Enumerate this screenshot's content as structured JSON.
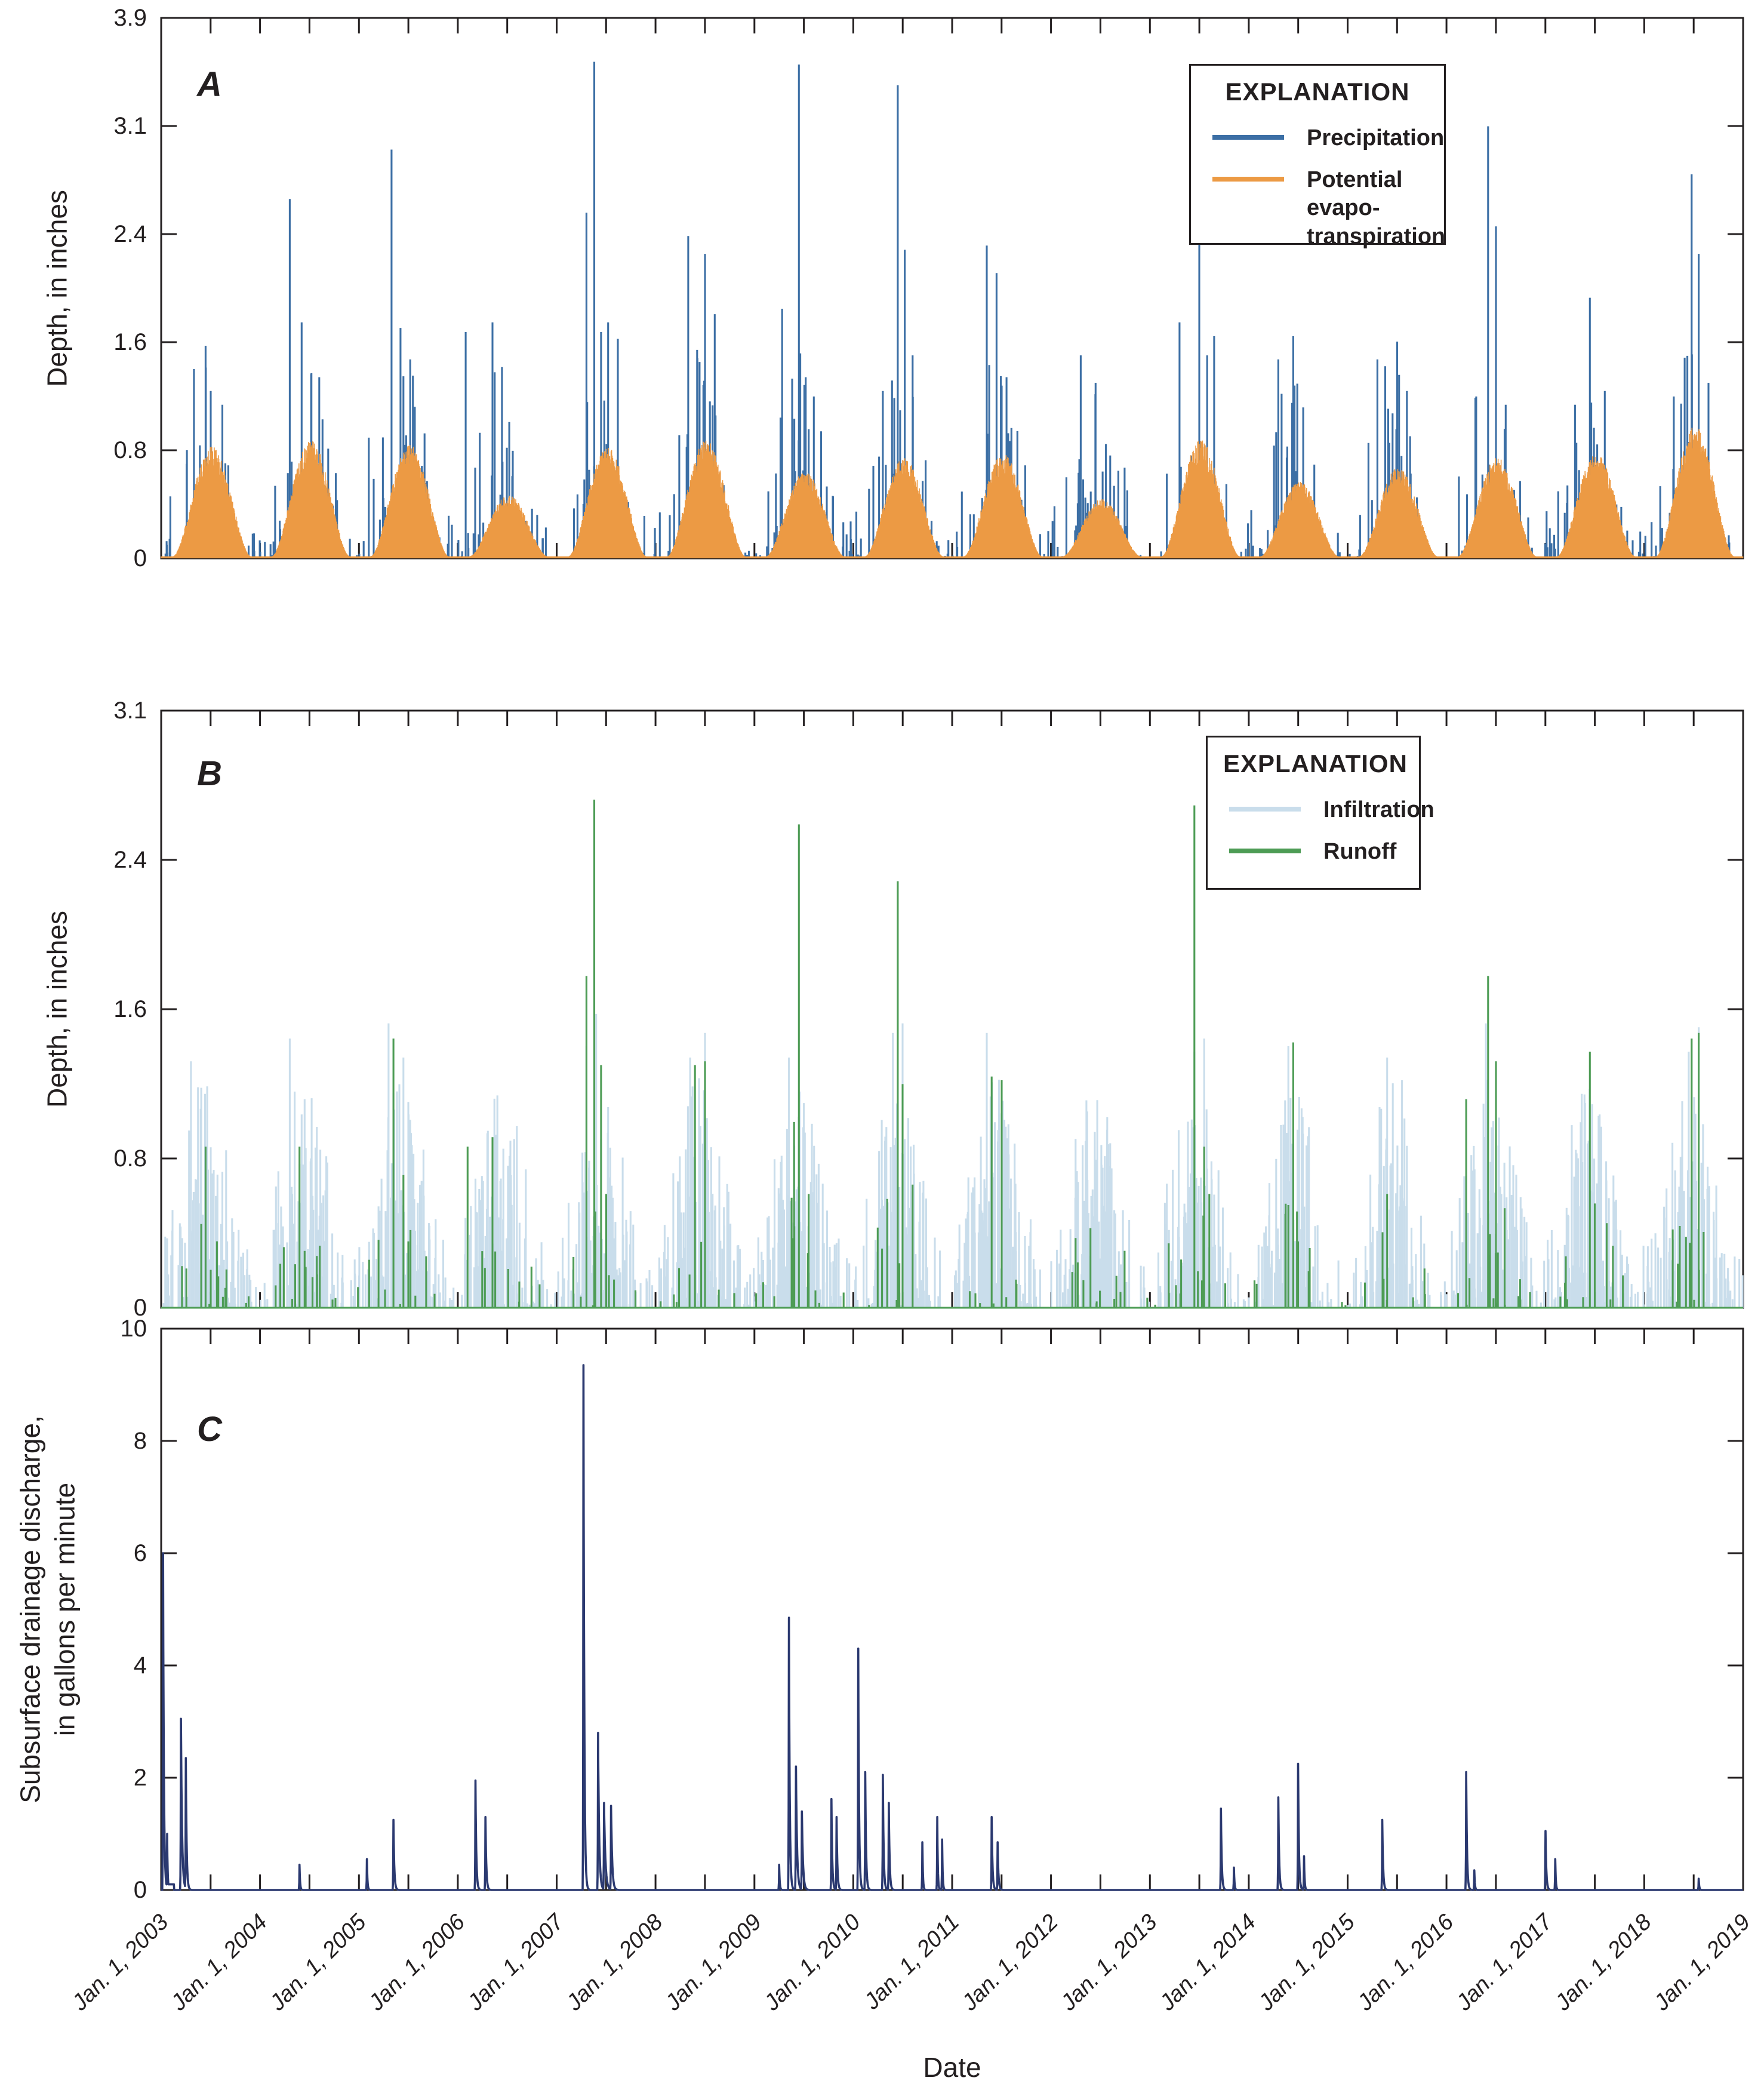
{
  "figure": {
    "panels": [
      {
        "letter": "A",
        "y_axis_title": "Depth, in inches",
        "y_tick_labels": [
          "0",
          "0.8",
          "1.6",
          "2.4",
          "3.1",
          "3.9"
        ]
      },
      {
        "letter": "B",
        "y_axis_title": "Depth, in inches",
        "y_tick_labels": [
          "0",
          "0.8",
          "1.6",
          "2.4",
          "3.1"
        ]
      },
      {
        "letter": "C",
        "y_axis_title_lines": [
          "Subsurface drainage discharge,",
          "in gallons per minute"
        ],
        "y_tick_labels": [
          "0",
          "2",
          "4",
          "6",
          "8",
          "10"
        ]
      }
    ],
    "x_axis": {
      "title": "Date",
      "year_labels": [
        "Jan. 1, 2003",
        "Jan. 1, 2004",
        "Jan. 1, 2005",
        "Jan. 1, 2006",
        "Jan. 1, 2007",
        "Jan. 1, 2008",
        "Jan. 1, 2009",
        "Jan. 1, 2010",
        "Jan. 1, 2011",
        "Jan. 1, 2012",
        "Jan. 1, 2013",
        "Jan. 1, 2014",
        "Jan. 1, 2015",
        "Jan. 1, 2016",
        "Jan. 1, 2017",
        "Jan. 1, 2018",
        "Jan. 1, 2019"
      ],
      "minor_ticks_per_year": 2
    },
    "axis_color": "#231f20",
    "background": "#ffffff"
  },
  "legends": {
    "a": {
      "title": "EXPLANATION",
      "items": [
        {
          "label": "Precipitation",
          "color": "#3C6FA5"
        },
        {
          "lines": [
            "Potential evapo-",
            "transpiration"
          ],
          "color": "#EC9A44"
        }
      ]
    },
    "b": {
      "title": "EXPLANATION",
      "items": [
        {
          "label": "Infiltration",
          "color": "#C9DDEB"
        },
        {
          "label": "Runoff",
          "color": "#4D9C55"
        }
      ]
    }
  },
  "chart_data": [
    {
      "panel": "A",
      "type": "bar",
      "ylabel": "Depth, in inches",
      "ylim": [
        0,
        3.94
      ],
      "y_tick_values": [
        0,
        0.79,
        1.57,
        2.36,
        3.15,
        3.94
      ],
      "x_range_years": [
        2003,
        2019
      ],
      "grid": false,
      "legend_position": "upper right",
      "series": [
        {
          "name": "Precipitation",
          "color": "#3C6FA5",
          "kind": "daily-events",
          "seed": 101,
          "event_prob_base": 0.048,
          "event_prob_seasonal": 0.17,
          "season_peak_doy": 165,
          "season_sigma_days": 78,
          "value_scale": 1.05,
          "value_power": 2.8,
          "value_seasonal_boost": 1.25,
          "major_peaks": [
            [
              2003.33,
              1.38
            ],
            [
              2003.45,
              1.55
            ],
            [
              2003.5,
              1.22
            ],
            [
              2003.62,
              1.12
            ],
            [
              2004.3,
              2.62
            ],
            [
              2004.42,
              1.72
            ],
            [
              2004.52,
              1.35
            ],
            [
              2004.6,
              1.32
            ],
            [
              2005.1,
              0.88
            ],
            [
              2005.33,
              2.98
            ],
            [
              2005.42,
              1.68
            ],
            [
              2005.52,
              1.45
            ],
            [
              2006.08,
              1.65
            ],
            [
              2006.35,
              1.72
            ],
            [
              2006.45,
              0.65
            ],
            [
              2006.55,
              0.6
            ],
            [
              2007.3,
              2.52
            ],
            [
              2007.38,
              3.62
            ],
            [
              2007.45,
              1.65
            ],
            [
              2007.52,
              1.72
            ],
            [
              2007.62,
              1.6
            ],
            [
              2008.33,
              2.35
            ],
            [
              2008.42,
              1.52
            ],
            [
              2008.5,
              2.22
            ],
            [
              2008.6,
              1.78
            ],
            [
              2009.28,
              1.82
            ],
            [
              2009.45,
              3.6
            ],
            [
              2009.52,
              1.32
            ],
            [
              2009.6,
              1.18
            ],
            [
              2010.3,
              1.22
            ],
            [
              2010.45,
              3.45
            ],
            [
              2010.52,
              2.25
            ],
            [
              2010.6,
              1.48
            ],
            [
              2011.35,
              2.28
            ],
            [
              2011.45,
              2.08
            ],
            [
              2011.55,
              1.32
            ],
            [
              2011.6,
              0.95
            ],
            [
              2012.3,
              1.48
            ],
            [
              2012.45,
              1.28
            ],
            [
              2012.6,
              0.75
            ],
            [
              2013.3,
              1.72
            ],
            [
              2013.5,
              3.35
            ],
            [
              2013.58,
              1.48
            ],
            [
              2013.65,
              1.62
            ],
            [
              2014.3,
              1.45
            ],
            [
              2014.45,
              1.62
            ],
            [
              2014.55,
              1.1
            ],
            [
              2015.3,
              1.45
            ],
            [
              2015.5,
              1.58
            ],
            [
              2015.6,
              1.22
            ],
            [
              2016.3,
              1.18
            ],
            [
              2016.42,
              3.15
            ],
            [
              2016.5,
              2.42
            ],
            [
              2016.6,
              1.12
            ],
            [
              2017.3,
              1.12
            ],
            [
              2017.45,
              1.9
            ],
            [
              2017.6,
              1.22
            ],
            [
              2018.3,
              1.18
            ],
            [
              2018.48,
              2.8
            ],
            [
              2018.55,
              2.22
            ],
            [
              2018.65,
              1.28
            ]
          ]
        },
        {
          "name": "Potential evapotranspiration",
          "color": "#EC9A44",
          "kind": "daily-seasonal",
          "seed": 55,
          "winter_base": 0.015,
          "noise": 0.22,
          "width_power": 1.7,
          "annual_peak_inches": [
            0.8,
            0.85,
            0.82,
            0.45,
            0.8,
            0.85,
            0.62,
            0.72,
            0.75,
            0.42,
            0.85,
            0.55,
            0.65,
            0.72,
            0.75,
            0.95
          ]
        }
      ]
    },
    {
      "panel": "B",
      "type": "bar",
      "ylabel": "Depth, in inches",
      "ylim": [
        0,
        3.15
      ],
      "y_tick_values": [
        0,
        0.79,
        1.57,
        2.36,
        3.15
      ],
      "x_range_years": [
        2003,
        2019
      ],
      "grid": false,
      "legend_position": "upper right",
      "series": [
        {
          "name": "Infiltration",
          "color": "#C9DDEB",
          "kind": "daily-events",
          "seed": 202,
          "event_prob_base": 0.05,
          "event_prob_seasonal": 0.42,
          "season_peak_doy": 160,
          "season_sigma_days": 85,
          "value_scale": 0.95,
          "value_power": 1.7,
          "value_seasonal_boost": 1.1,
          "cap": 1.55,
          "major_peaks": [
            [
              2003.3,
              1.3
            ],
            [
              2003.4,
              1.05
            ],
            [
              2004.3,
              1.42
            ],
            [
              2004.45,
              1.1
            ],
            [
              2005.3,
              1.5
            ],
            [
              2005.45,
              1.32
            ],
            [
              2006.3,
              0.92
            ],
            [
              2006.4,
              0.85
            ],
            [
              2007.3,
              1.38
            ],
            [
              2007.4,
              1.55
            ],
            [
              2008.35,
              1.32
            ],
            [
              2008.5,
              1.45
            ],
            [
              2009.35,
              1.32
            ],
            [
              2009.5,
              1.08
            ],
            [
              2010.4,
              1.45
            ],
            [
              2010.5,
              1.5
            ],
            [
              2011.35,
              1.45
            ],
            [
              2011.5,
              1.08
            ],
            [
              2012.35,
              0.88
            ],
            [
              2013.45,
              1.35
            ],
            [
              2013.55,
              1.42
            ],
            [
              2014.4,
              1.38
            ],
            [
              2015.4,
              1.32
            ],
            [
              2015.55,
              1.2
            ],
            [
              2016.4,
              1.5
            ],
            [
              2016.5,
              1.12
            ],
            [
              2017.4,
              1.08
            ],
            [
              2017.55,
              1.02
            ],
            [
              2018.45,
              1.35
            ],
            [
              2018.55,
              1.48
            ]
          ]
        },
        {
          "name": "Runoff",
          "color": "#4D9C55",
          "kind": "daily-events",
          "seed": 303,
          "event_prob_base": 0.005,
          "event_prob_seasonal": 0.05,
          "season_peak_doy": 165,
          "season_sigma_days": 80,
          "value_scale": 0.55,
          "value_power": 2.2,
          "value_seasonal_boost": 1.0,
          "baseline_line": true,
          "major_peaks": [
            [
              2003.45,
              0.85
            ],
            [
              2003.5,
              0.2
            ],
            [
              2004.4,
              0.85
            ],
            [
              2004.45,
              0.3
            ],
            [
              2005.35,
              1.42
            ],
            [
              2005.45,
              0.7
            ],
            [
              2005.5,
              0.35
            ],
            [
              2006.1,
              0.85
            ],
            [
              2006.35,
              0.9
            ],
            [
              2007.3,
              1.75
            ],
            [
              2007.38,
              2.68
            ],
            [
              2007.45,
              1.28
            ],
            [
              2007.5,
              0.6
            ],
            [
              2008.4,
              1.28
            ],
            [
              2008.5,
              1.3
            ],
            [
              2009.4,
              0.98
            ],
            [
              2009.45,
              2.55
            ],
            [
              2009.55,
              0.6
            ],
            [
              2010.45,
              2.25
            ],
            [
              2010.5,
              1.18
            ],
            [
              2010.6,
              0.65
            ],
            [
              2011.4,
              1.22
            ],
            [
              2011.5,
              1.2
            ],
            [
              2012.4,
              0.42
            ],
            [
              2013.45,
              2.65
            ],
            [
              2013.55,
              0.85
            ],
            [
              2013.6,
              0.6
            ],
            [
              2014.45,
              1.4
            ],
            [
              2014.5,
              0.35
            ],
            [
              2015.4,
              0.6
            ],
            [
              2016.2,
              1.1
            ],
            [
              2016.42,
              1.75
            ],
            [
              2016.5,
              1.3
            ],
            [
              2017.45,
              1.35
            ],
            [
              2017.5,
              0.55
            ],
            [
              2018.48,
              1.42
            ],
            [
              2018.55,
              1.45
            ],
            [
              2018.6,
              0.4
            ]
          ]
        }
      ]
    },
    {
      "panel": "C",
      "type": "line",
      "ylabel": "Subsurface drainage discharge, in gallons per minute",
      "ylim": [
        0,
        10
      ],
      "y_tick_values": [
        0,
        2,
        4,
        6,
        8,
        10
      ],
      "x_range_years": [
        2003,
        2019
      ],
      "grid": false,
      "series": [
        {
          "name": "Subsurface drainage discharge",
          "color": "#2B3970",
          "kind": "spike-decay",
          "shelves": [
            [
              2003.03,
              2003.13,
              0.1
            ]
          ],
          "spikes": [
            [
              2003.02,
              6.0,
              3
            ],
            [
              2003.06,
              1.0,
              2
            ],
            [
              2003.2,
              3.05,
              4
            ],
            [
              2003.25,
              2.35,
              3
            ],
            [
              2004.4,
              0.45,
              2
            ],
            [
              2005.08,
              0.55,
              2
            ],
            [
              2005.35,
              1.25,
              3
            ],
            [
              2006.18,
              1.95,
              3
            ],
            [
              2006.28,
              1.3,
              3
            ],
            [
              2007.27,
              9.35,
              3
            ],
            [
              2007.42,
              2.8,
              4
            ],
            [
              2007.48,
              1.55,
              5
            ],
            [
              2007.55,
              1.5,
              4
            ],
            [
              2009.25,
              0.45,
              2
            ],
            [
              2009.35,
              4.85,
              3
            ],
            [
              2009.42,
              2.2,
              4
            ],
            [
              2009.48,
              1.4,
              4
            ],
            [
              2009.78,
              1.62,
              3
            ],
            [
              2009.83,
              1.3,
              3
            ],
            [
              2010.05,
              4.3,
              3
            ],
            [
              2010.12,
              2.1,
              3
            ],
            [
              2010.3,
              2.05,
              3
            ],
            [
              2010.36,
              1.55,
              3
            ],
            [
              2010.7,
              0.85,
              2
            ],
            [
              2010.85,
              1.3,
              2
            ],
            [
              2010.9,
              0.9,
              2
            ],
            [
              2011.4,
              1.3,
              3
            ],
            [
              2011.46,
              0.85,
              3
            ],
            [
              2013.72,
              1.45,
              3
            ],
            [
              2013.85,
              0.4,
              2
            ],
            [
              2014.3,
              1.65,
              3
            ],
            [
              2014.5,
              2.25,
              3
            ],
            [
              2014.56,
              0.6,
              2
            ],
            [
              2015.35,
              1.25,
              3
            ],
            [
              2016.2,
              2.1,
              3
            ],
            [
              2016.28,
              0.35,
              2
            ],
            [
              2017.0,
              1.05,
              3
            ],
            [
              2017.1,
              0.55,
              2
            ],
            [
              2018.55,
              0.2,
              2
            ]
          ]
        }
      ]
    }
  ]
}
